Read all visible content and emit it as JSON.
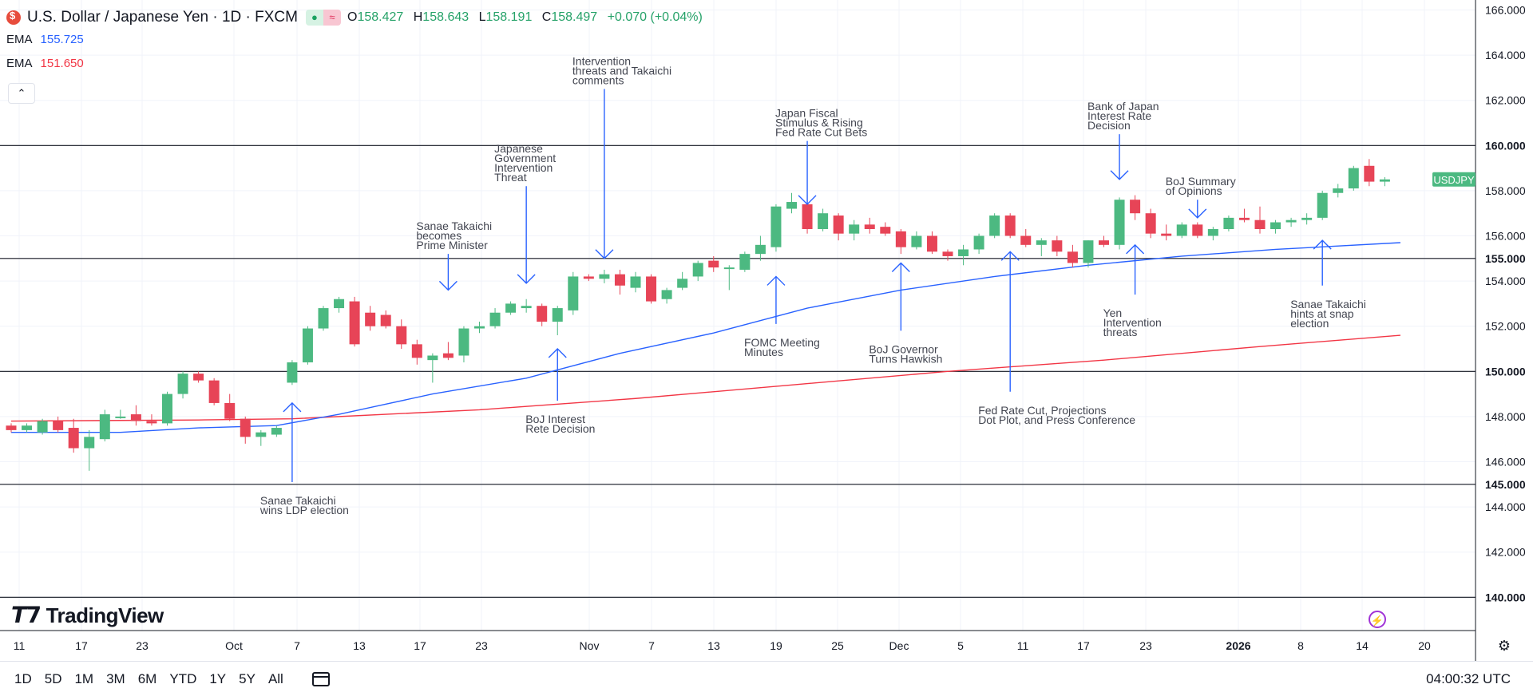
{
  "header": {
    "title": "U.S. Dollar / Japanese Yen · 1D · FXCM",
    "ohlc": [
      {
        "label": "O",
        "value": "158.427"
      },
      {
        "label": "H",
        "value": "158.643"
      },
      {
        "label": "L",
        "value": "158.191"
      },
      {
        "label": "C",
        "value": "158.497"
      }
    ],
    "change": "+0.070 (+0.04%)",
    "ema1": {
      "label": "EMA",
      "value": "155.725",
      "color": "#2962ff"
    },
    "ema2": {
      "label": "EMA",
      "value": "151.650",
      "color": "#f23645"
    },
    "collapse_icon": "chevron-up-icon"
  },
  "toolbar": {
    "ranges": [
      "1D",
      "5D",
      "1M",
      "3M",
      "6M",
      "YTD",
      "1Y",
      "5Y",
      "All"
    ],
    "clock": "04:00:32 UTC",
    "calendar_icon": "calendar-icon"
  },
  "branding": {
    "logo_text": "TradingView"
  },
  "chart_data": {
    "type": "candlestick",
    "symbol_label": "USDJPY",
    "ylim": [
      138.8,
      166.3
    ],
    "y_ticks": [
      142,
      144,
      146,
      148,
      152,
      154,
      156,
      158,
      162,
      164,
      166
    ],
    "y_tick_labels": [
      "142.000",
      "144.000",
      "146.000",
      "148.000",
      "152.000",
      "154.000",
      "156.000",
      "158.000",
      "162.000",
      "164.000",
      "166.000"
    ],
    "x_tick_labels": [
      "11",
      "17",
      "23",
      "Oct",
      "7",
      "13",
      "17",
      "23",
      "Nov",
      "7",
      "13",
      "19",
      "25",
      "Dec",
      "5",
      "11",
      "17",
      "23",
      "2026",
      "8",
      "14",
      "20"
    ],
    "horizontal_levels": [
      {
        "value": 160,
        "label": "160.000"
      },
      {
        "value": 155,
        "label": "155.000"
      },
      {
        "value": 150,
        "label": "150.000"
      },
      {
        "value": 145,
        "label": "145.000"
      },
      {
        "value": 140,
        "label": "140.000"
      }
    ],
    "candles": [
      [
        147.6,
        147.7,
        147.3,
        147.4
      ],
      [
        147.4,
        147.7,
        147.3,
        147.6
      ],
      [
        147.3,
        147.9,
        147.2,
        147.8
      ],
      [
        147.8,
        148.0,
        147.3,
        147.4
      ],
      [
        147.5,
        147.9,
        146.4,
        146.6
      ],
      [
        146.6,
        147.4,
        145.6,
        147.1
      ],
      [
        147.0,
        148.3,
        146.9,
        148.1
      ],
      [
        148.0,
        148.3,
        147.9,
        148.0
      ],
      [
        148.1,
        148.5,
        147.6,
        147.8
      ],
      [
        147.8,
        148.1,
        147.6,
        147.7
      ],
      [
        147.7,
        149.1,
        147.6,
        149.0
      ],
      [
        149.0,
        150.0,
        148.8,
        149.9
      ],
      [
        149.9,
        150.0,
        149.5,
        149.6
      ],
      [
        149.6,
        149.7,
        148.5,
        148.6
      ],
      [
        148.6,
        149.0,
        147.8,
        147.9
      ],
      [
        147.9,
        148.0,
        146.8,
        147.1
      ],
      [
        147.1,
        147.4,
        146.7,
        147.3
      ],
      [
        147.2,
        147.6,
        147.1,
        147.5
      ],
      [
        149.5,
        150.5,
        149.4,
        150.4
      ],
      [
        150.4,
        152.0,
        150.3,
        151.9
      ],
      [
        151.9,
        152.9,
        151.8,
        152.8
      ],
      [
        152.8,
        153.3,
        152.6,
        153.2
      ],
      [
        153.1,
        153.3,
        151.1,
        151.2
      ],
      [
        152.6,
        152.9,
        151.8,
        152.0
      ],
      [
        152.5,
        152.7,
        151.9,
        152.0
      ],
      [
        152.0,
        152.3,
        151.0,
        151.2
      ],
      [
        151.2,
        151.4,
        150.3,
        150.6
      ],
      [
        150.5,
        150.8,
        149.5,
        150.7
      ],
      [
        150.8,
        151.3,
        150.5,
        150.6
      ],
      [
        150.7,
        152.0,
        150.4,
        151.9
      ],
      [
        151.9,
        152.2,
        151.7,
        152.0
      ],
      [
        152.0,
        152.8,
        151.9,
        152.6
      ],
      [
        152.6,
        153.1,
        152.5,
        153.0
      ],
      [
        152.8,
        153.2,
        152.6,
        152.9
      ],
      [
        152.9,
        153.0,
        152.0,
        152.2
      ],
      [
        152.2,
        152.9,
        151.6,
        152.8
      ],
      [
        152.7,
        154.4,
        152.5,
        154.2
      ],
      [
        154.2,
        154.3,
        154.0,
        154.1
      ],
      [
        154.1,
        154.5,
        153.9,
        154.3
      ],
      [
        154.3,
        154.5,
        153.4,
        153.8
      ],
      [
        153.7,
        154.4,
        153.5,
        154.2
      ],
      [
        154.2,
        154.3,
        153.0,
        153.1
      ],
      [
        153.2,
        153.7,
        153.0,
        153.6
      ],
      [
        153.7,
        154.4,
        153.6,
        154.1
      ],
      [
        154.2,
        154.9,
        154.0,
        154.8
      ],
      [
        154.9,
        155.1,
        154.4,
        154.6
      ],
      [
        154.6,
        154.7,
        153.6,
        154.6
      ],
      [
        154.5,
        155.3,
        154.4,
        155.2
      ],
      [
        155.2,
        156.0,
        154.9,
        155.6
      ],
      [
        155.5,
        157.4,
        155.3,
        157.3
      ],
      [
        157.2,
        157.9,
        157.0,
        157.5
      ],
      [
        157.4,
        157.8,
        156.1,
        156.3
      ],
      [
        156.3,
        157.2,
        156.2,
        157.0
      ],
      [
        156.9,
        157.0,
        155.8,
        156.1
      ],
      [
        156.1,
        156.7,
        155.8,
        156.5
      ],
      [
        156.5,
        156.8,
        156.1,
        156.3
      ],
      [
        156.4,
        156.6,
        156.0,
        156.1
      ],
      [
        156.2,
        156.3,
        155.2,
        155.5
      ],
      [
        155.5,
        156.2,
        155.4,
        156.0
      ],
      [
        156.0,
        156.2,
        155.2,
        155.3
      ],
      [
        155.3,
        155.4,
        154.9,
        155.1
      ],
      [
        155.1,
        155.6,
        154.7,
        155.4
      ],
      [
        155.4,
        156.1,
        155.2,
        156.0
      ],
      [
        156.0,
        157.0,
        155.9,
        156.9
      ],
      [
        156.9,
        157.0,
        155.9,
        156.0
      ],
      [
        156.0,
        156.3,
        155.5,
        155.6
      ],
      [
        155.6,
        155.9,
        155.1,
        155.8
      ],
      [
        155.8,
        156.0,
        155.1,
        155.3
      ],
      [
        155.3,
        155.6,
        154.6,
        154.8
      ],
      [
        154.8,
        155.8,
        154.6,
        155.8
      ],
      [
        155.8,
        156.0,
        155.5,
        155.6
      ],
      [
        155.6,
        157.7,
        155.4,
        157.6
      ],
      [
        157.6,
        157.8,
        156.7,
        157.0
      ],
      [
        157.0,
        157.2,
        155.9,
        156.1
      ],
      [
        156.1,
        156.5,
        155.8,
        156.0
      ],
      [
        156.0,
        156.6,
        155.9,
        156.5
      ],
      [
        156.5,
        156.6,
        155.9,
        156.0
      ],
      [
        156.0,
        156.4,
        155.8,
        156.3
      ],
      [
        156.3,
        156.9,
        156.2,
        156.8
      ],
      [
        156.8,
        157.2,
        156.6,
        156.7
      ],
      [
        156.7,
        157.3,
        156.1,
        156.3
      ],
      [
        156.3,
        156.7,
        156.1,
        156.6
      ],
      [
        156.6,
        156.8,
        156.4,
        156.7
      ],
      [
        156.7,
        157.0,
        156.5,
        156.8
      ],
      [
        156.8,
        158.0,
        156.7,
        157.9
      ],
      [
        157.9,
        158.3,
        157.7,
        158.1
      ],
      [
        158.1,
        159.1,
        158.0,
        159.0
      ],
      [
        159.1,
        159.4,
        158.2,
        158.4
      ],
      [
        158.4,
        158.6,
        158.2,
        158.5
      ]
    ],
    "ema_fast": {
      "label": "EMA",
      "color": "#2962ff",
      "points": [
        [
          0,
          147.3
        ],
        [
          7,
          147.3
        ],
        [
          12,
          147.5
        ],
        [
          17,
          147.6
        ],
        [
          21,
          148.1
        ],
        [
          27,
          149.0
        ],
        [
          33,
          149.7
        ],
        [
          39,
          150.8
        ],
        [
          45,
          151.7
        ],
        [
          51,
          152.8
        ],
        [
          57,
          153.6
        ],
        [
          63,
          154.2
        ],
        [
          69,
          154.7
        ],
        [
          75,
          155.1
        ],
        [
          81,
          155.4
        ],
        [
          89,
          155.7
        ]
      ]
    },
    "ema_slow": {
      "label": "EMA",
      "color": "#f23645",
      "points": [
        [
          0,
          147.8
        ],
        [
          12,
          147.85
        ],
        [
          18,
          147.9
        ],
        [
          30,
          148.3
        ],
        [
          40,
          148.8
        ],
        [
          50,
          149.4
        ],
        [
          60,
          150.0
        ],
        [
          70,
          150.5
        ],
        [
          80,
          151.1
        ],
        [
          89,
          151.6
        ]
      ]
    },
    "annotations": [
      {
        "text": [
          "Sanae Takaichi",
          "wins LDP election"
        ],
        "arrow_x": 18,
        "arrow_from": 145.1,
        "arrow_to": 148.6
      },
      {
        "text": [
          "Sanae Takaichi",
          "becomes",
          "Prime Minister"
        ],
        "arrow_x": 28,
        "arrow_from": 155.2,
        "arrow_to": 153.6
      },
      {
        "text": [
          "Japanese",
          "Government",
          "Intervention",
          "Threat"
        ],
        "arrow_x": 33,
        "arrow_from": 158.2,
        "arrow_to": 153.9
      },
      {
        "text": [
          "Intervention",
          "threats and Takaichi",
          "comments"
        ],
        "arrow_x": 38,
        "arrow_from": 162.5,
        "arrow_to": 155.0
      },
      {
        "text": [
          "BoJ Interest",
          "Rete Decision"
        ],
        "arrow_x": 35,
        "arrow_from": 148.7,
        "arrow_to": 151.0
      },
      {
        "text": [
          "FOMC Meeting",
          "Minutes"
        ],
        "arrow_x": 49,
        "arrow_from": 152.1,
        "arrow_to": 154.2
      },
      {
        "text": [
          "Japan Fiscal",
          "Stimulus & Rising",
          "Fed Rate Cut Bets"
        ],
        "arrow_x": 51,
        "arrow_from": 160.2,
        "arrow_to": 157.4
      },
      {
        "text": [
          "BoJ Governor",
          "Turns Hawkish"
        ],
        "arrow_x": 57,
        "arrow_from": 151.8,
        "arrow_to": 154.8
      },
      {
        "text": [
          "Fed Rate Cut, Projections",
          "Dot Plot, and Press Conference"
        ],
        "arrow_x": 64,
        "arrow_from": 149.1,
        "arrow_to": 155.3
      },
      {
        "text": [
          "Bank of Japan",
          "Interest Rate",
          "Decision"
        ],
        "arrow_x": 71,
        "arrow_from": 160.5,
        "arrow_to": 158.5
      },
      {
        "text": [
          "Yen",
          "Intervention",
          "threats"
        ],
        "arrow_x": 72,
        "arrow_from": 153.4,
        "arrow_to": 155.6
      },
      {
        "text": [
          "BoJ Summary",
          "of Opinions"
        ],
        "arrow_x": 76,
        "arrow_from": 157.6,
        "arrow_to": 156.8
      },
      {
        "text": [
          "Sanae Takaichi",
          "hints at snap",
          "election"
        ],
        "arrow_x": 84,
        "arrow_from": 153.8,
        "arrow_to": 155.8
      }
    ]
  }
}
